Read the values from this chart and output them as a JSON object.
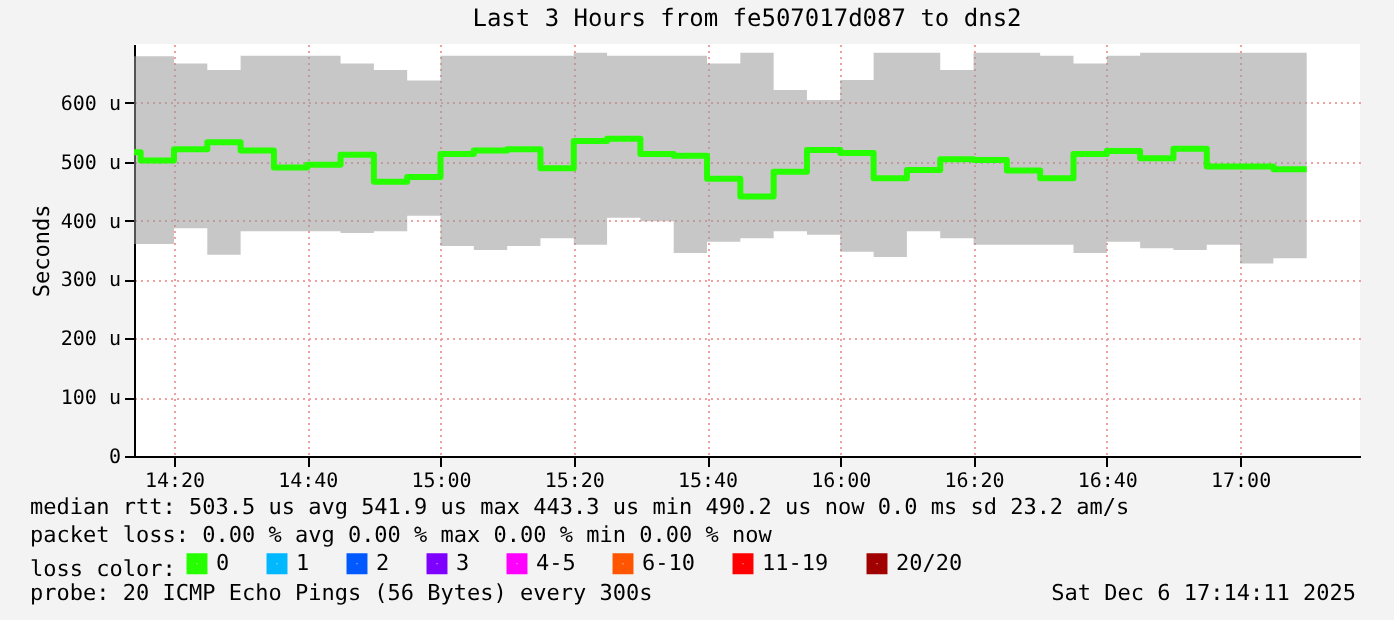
{
  "chart_data": {
    "type": "step",
    "title": "Last 3 Hours from fe507017d087 to dns2",
    "ylabel": "Seconds",
    "legend_title": "loss color:",
    "x": [
      "2025-12-06T14:14",
      "2025-12-06T14:15",
      "2025-12-06T14:20",
      "2025-12-06T14:25",
      "2025-12-06T14:30",
      "2025-12-06T14:35",
      "2025-12-06T14:40",
      "2025-12-06T14:45",
      "2025-12-06T14:50",
      "2025-12-06T14:55",
      "2025-12-06T15:00",
      "2025-12-06T15:05",
      "2025-12-06T15:10",
      "2025-12-06T15:15",
      "2025-12-06T15:20",
      "2025-12-06T15:25",
      "2025-12-06T15:30",
      "2025-12-06T15:35",
      "2025-12-06T15:40",
      "2025-12-06T15:45",
      "2025-12-06T15:50",
      "2025-12-06T15:55",
      "2025-12-06T16:00",
      "2025-12-06T16:05",
      "2025-12-06T16:10",
      "2025-12-06T16:15",
      "2025-12-06T16:20",
      "2025-12-06T16:25",
      "2025-12-06T16:30",
      "2025-12-06T16:35",
      "2025-12-06T16:40",
      "2025-12-06T16:45",
      "2025-12-06T16:50",
      "2025-12-06T16:55",
      "2025-12-06T17:00",
      "2025-12-06T17:05",
      "2025-12-06T17:10"
    ],
    "series": [
      {
        "name": "0",
        "color": "#26ff00",
        "values": [
          516,
          502,
          521,
          533,
          519,
          490,
          495,
          512,
          466,
          474,
          513,
          519,
          521,
          489,
          535,
          539,
          513,
          510,
          471,
          441,
          483,
          520,
          515,
          472,
          486,
          504,
          503,
          485,
          472,
          513,
          518,
          506,
          522,
          492,
          492,
          487,
          487
        ],
        "lower": [
          360,
          360,
          387,
          342,
          382,
          382,
          382,
          379,
          382,
          408,
          357,
          350,
          357,
          370,
          359,
          405,
          399,
          345,
          364,
          370,
          382,
          376,
          347,
          338,
          382,
          370,
          359,
          359,
          359,
          345,
          364,
          353,
          350,
          359,
          327,
          336,
          336
        ],
        "upper": [
          679,
          679,
          667,
          656,
          680,
          680,
          680,
          667,
          656,
          638,
          680,
          680,
          680,
          680,
          685,
          680,
          680,
          680,
          667,
          685,
          622,
          605,
          639,
          685,
          685,
          656,
          685,
          685,
          680,
          667,
          680,
          685,
          685,
          685,
          685,
          685,
          685
        ]
      },
      {
        "name": "1",
        "color": "#00b8ff",
        "values": [
          null,
          null,
          null,
          null,
          null,
          null,
          null,
          null,
          null,
          null,
          null,
          null,
          null,
          null,
          null,
          null,
          null,
          null,
          null,
          null,
          null,
          null,
          null,
          null,
          null,
          null,
          null,
          null,
          null,
          null,
          null,
          null,
          null,
          null,
          null,
          null,
          null
        ]
      },
      {
        "name": "2",
        "color": "#0059ff",
        "values": [
          null,
          null,
          null,
          null,
          null,
          null,
          null,
          null,
          null,
          null,
          null,
          null,
          null,
          null,
          null,
          null,
          null,
          null,
          null,
          null,
          null,
          null,
          null,
          null,
          null,
          null,
          null,
          null,
          null,
          null,
          null,
          null,
          null,
          null,
          null,
          null,
          null
        ]
      },
      {
        "name": "3",
        "color": "#7e00ff",
        "values": [
          null,
          null,
          null,
          null,
          null,
          null,
          null,
          null,
          null,
          null,
          null,
          null,
          null,
          null,
          null,
          null,
          null,
          null,
          null,
          null,
          null,
          null,
          null,
          null,
          null,
          null,
          null,
          null,
          null,
          null,
          null,
          null,
          null,
          null,
          null,
          null,
          null
        ]
      },
      {
        "name": "4-5",
        "color": "#ff00ff",
        "values": [
          null,
          null,
          null,
          null,
          null,
          null,
          null,
          null,
          null,
          null,
          null,
          null,
          null,
          null,
          null,
          null,
          null,
          null,
          null,
          null,
          null,
          null,
          null,
          null,
          null,
          null,
          null,
          null,
          null,
          null,
          null,
          null,
          null,
          null,
          null,
          null,
          null
        ]
      },
      {
        "name": "6-10",
        "color": "#ff5500",
        "values": [
          null,
          null,
          null,
          null,
          null,
          null,
          null,
          null,
          null,
          null,
          null,
          null,
          null,
          null,
          null,
          null,
          null,
          null,
          null,
          null,
          null,
          null,
          null,
          null,
          null,
          null,
          null,
          null,
          null,
          null,
          null,
          null,
          null,
          null,
          null,
          null,
          null
        ]
      },
      {
        "name": "11-19",
        "color": "#ff0000",
        "values": [
          null,
          null,
          null,
          null,
          null,
          null,
          null,
          null,
          null,
          null,
          null,
          null,
          null,
          null,
          null,
          null,
          null,
          null,
          null,
          null,
          null,
          null,
          null,
          null,
          null,
          null,
          null,
          null,
          null,
          null,
          null,
          null,
          null,
          null,
          null,
          null,
          null
        ]
      },
      {
        "name": "20/20",
        "color": "#a10000",
        "values": [
          null,
          null,
          null,
          null,
          null,
          null,
          null,
          null,
          null,
          null,
          null,
          null,
          null,
          null,
          null,
          null,
          null,
          null,
          null,
          null,
          null,
          null,
          null,
          null,
          null,
          null,
          null,
          null,
          null,
          null,
          null,
          null,
          null,
          null,
          null,
          null,
          null
        ]
      }
    ],
    "xlim": [
      "2025-12-06T14:14",
      "2025-12-06T17:18"
    ],
    "xticks": [
      {
        "value": "2025-12-06T14:20",
        "label": "14:20"
      },
      {
        "value": "2025-12-06T14:40",
        "label": "14:40"
      },
      {
        "value": "2025-12-06T15:00",
        "label": "15:00"
      },
      {
        "value": "2025-12-06T15:20",
        "label": "15:20"
      },
      {
        "value": "2025-12-06T15:40",
        "label": "15:40"
      },
      {
        "value": "2025-12-06T16:00",
        "label": "16:00"
      },
      {
        "value": "2025-12-06T16:20",
        "label": "16:20"
      },
      {
        "value": "2025-12-06T16:40",
        "label": "16:40"
      },
      {
        "value": "2025-12-06T17:00",
        "label": "17:00"
      }
    ],
    "ylim": [
      0,
      700
    ],
    "yticks": [
      0,
      {
        "value": 100,
        "label": "100 u"
      },
      {
        "value": 200,
        "label": "200 u"
      },
      {
        "value": 300,
        "label": "300 u"
      },
      {
        "value": 400,
        "label": "400 u"
      },
      {
        "value": 500,
        "label": "500 u"
      },
      {
        "value": 600,
        "label": "600 u"
      }
    ],
    "grid": true,
    "legend": "bottom",
    "annotations": [
      "median rtt: 503.5 us avg 541.9 us max 443.3 us min 490.2 us now 0.0 ms sd 23.2 am/s",
      "packet loss: 0.00 % avg 0.00 % max 0.00 % min 0.00 % now",
      "probe: 20 ICMP Echo Pings (56 Bytes) every 300s",
      "Sat Dec 6 17:14:11 2025"
    ]
  }
}
